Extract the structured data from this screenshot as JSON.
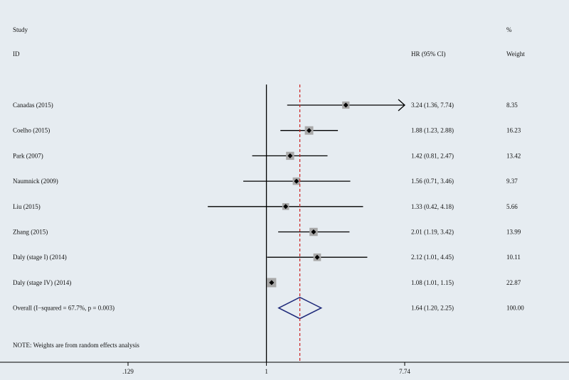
{
  "chart_data": {
    "type": "forest",
    "scale": "log",
    "headers": {
      "study_line1": "Study",
      "study_line2": "ID",
      "effect": "HR (95% CI)",
      "weight_line1": "%",
      "weight_line2": "Weight"
    },
    "studies": [
      {
        "label": "Canadas (2015)",
        "hr": 3.24,
        "lo": 1.36,
        "hi": 7.74,
        "weight": 8.35,
        "hr_text": "3.24 (1.36, 7.74)",
        "weight_text": "8.35",
        "arrow_right": true
      },
      {
        "label": "Coelho (2015)",
        "hr": 1.88,
        "lo": 1.23,
        "hi": 2.88,
        "weight": 16.23,
        "hr_text": "1.88 (1.23, 2.88)",
        "weight_text": "16.23"
      },
      {
        "label": "Park (2007)",
        "hr": 1.42,
        "lo": 0.81,
        "hi": 2.47,
        "weight": 13.42,
        "hr_text": "1.42 (0.81, 2.47)",
        "weight_text": "13.42"
      },
      {
        "label": "Naumnick (2009)",
        "hr": 1.56,
        "lo": 0.71,
        "hi": 3.46,
        "weight": 9.37,
        "hr_text": "1.56 (0.71, 3.46)",
        "weight_text": "9.37"
      },
      {
        "label": "Liu (2015)",
        "hr": 1.33,
        "lo": 0.42,
        "hi": 4.18,
        "weight": 5.66,
        "hr_text": "1.33 (0.42, 4.18)",
        "weight_text": "5.66"
      },
      {
        "label": "Zhang (2015)",
        "hr": 2.01,
        "lo": 1.19,
        "hi": 3.42,
        "weight": 13.99,
        "hr_text": "2.01 (1.19, 3.42)",
        "weight_text": "13.99"
      },
      {
        "label": "Daly (stage I) (2014)",
        "hr": 2.12,
        "lo": 1.01,
        "hi": 4.45,
        "weight": 10.11,
        "hr_text": "2.12 (1.01, 4.45)",
        "weight_text": "10.11"
      },
      {
        "label": "Daly (stage IV) (2014)",
        "hr": 1.08,
        "lo": 1.01,
        "hi": 1.15,
        "weight": 22.87,
        "hr_text": "1.08 (1.01, 1.15)",
        "weight_text": "22.87"
      }
    ],
    "overall": {
      "label": "Overall  (I−squared = 67.7%, p = 0.003)",
      "hr": 1.64,
      "lo": 1.2,
      "hi": 2.25,
      "hr_text": "1.64 (1.20, 2.25)",
      "weight_text": "100.00"
    },
    "note": "NOTE: Weights are from random effects analysis",
    "xaxis": {
      "min": 0.129,
      "max": 7.74,
      "ticks": [
        0.129,
        1,
        7.74
      ],
      "tick_labels": [
        ".129",
        "1",
        "7.74"
      ]
    },
    "null_value": 1
  },
  "colors": {
    "background": "#e6ecf1",
    "ci_line": "#000000",
    "weight_box": "#a8a8a8",
    "point": "#000000",
    "diamond": "#1f2a7a",
    "overall_line": "#cc2020"
  }
}
